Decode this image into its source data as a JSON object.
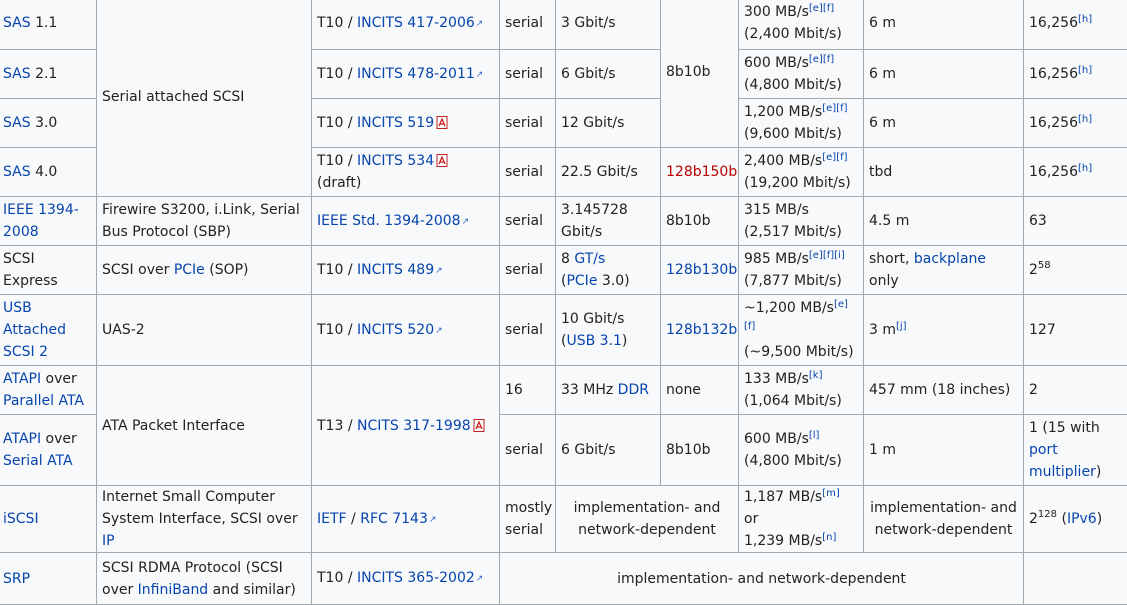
{
  "rows": {
    "sas11": {
      "name": "SAS",
      "ver": "1.1",
      "std_org": "T10 / ",
      "std_doc": "INCITS 417-2006",
      "bus": "serial",
      "clock": "3 Gbit/s",
      "speed1": "300 MB/s",
      "speed2": "(2,400 Mbit/s)",
      "refs": "[e][f]",
      "length": "6 m",
      "devices": "16,256",
      "dev_ref": "[h]"
    },
    "sas21": {
      "name": "SAS",
      "ver": "2.1",
      "std_org": "T10 / ",
      "std_doc": "INCITS 478-2011",
      "bus": "serial",
      "clock": "6 Gbit/s",
      "speed1": "600 MB/s",
      "speed2": "(4,800 Mbit/s)",
      "refs": "[e][f]",
      "length": "6 m",
      "devices": "16,256",
      "dev_ref": "[h]"
    },
    "sas30": {
      "name": "SAS",
      "ver": "3.0",
      "std_org": "T10 / ",
      "std_doc": "INCITS 519",
      "bus": "serial",
      "clock": "12 Gbit/s",
      "speed1": "1,200 MB/s",
      "speed2": "(9,600 Mbit/s)",
      "refs": "[e][f]",
      "length": "6 m",
      "devices": "16,256",
      "dev_ref": "[h]"
    },
    "sas40": {
      "name": "SAS",
      "ver": "4.0",
      "std_org": "T10 / ",
      "std_doc": "INCITS 534",
      "std_suffix": " (draft)",
      "bus": "serial",
      "clock": "22.5 Gbit/s",
      "encoding": "128b150b",
      "speed1": "2,400 MB/s",
      "speed2": "(19,200 Mbit/s)",
      "refs": "[e][f]",
      "length": "tbd",
      "devices": "16,256",
      "dev_ref": "[h]"
    },
    "sas_group": {
      "description": "Serial attached SCSI",
      "encoding": "8b10b"
    },
    "ieee1394": {
      "name": "IEEE 1394-2008",
      "description": "Firewire S3200, i.Link, Serial Bus Protocol (SBP)",
      "std_doc": "IEEE Std. 1394-2008",
      "bus": "serial",
      "clock": "3.145728 Gbit/s",
      "encoding": "8b10b",
      "speed1": "315 MB/s",
      "speed2": "(2,517 Mbit/s)",
      "length": "4.5 m",
      "devices": "63"
    },
    "scsi_express": {
      "name": "SCSI Express",
      "desc_pre": "SCSI over ",
      "desc_link": "PCIe",
      "desc_post": " (SOP)",
      "std_org": "T10 / ",
      "std_doc": "INCITS 489",
      "bus": "serial",
      "clock_val": "8 ",
      "clock_unit": "GT/s",
      "clock_pre": "(",
      "clock_link": "PCIe",
      "clock_post": " 3.0)",
      "encoding": "128b130b",
      "speed1": "985 MB/s",
      "speed2": "(7,877 Mbit/s)",
      "refs": "[e][f][i]",
      "len_pre": "short, ",
      "len_link": "backplane",
      "len_post": " only",
      "dev_base": "2",
      "dev_exp": "58"
    },
    "uas2": {
      "name": "USB Attached SCSI 2",
      "description": "UAS-2",
      "std_org": "T10 / ",
      "std_doc": "INCITS 520",
      "bus": "serial",
      "clock_val": "10 Gbit/s",
      "clock_pre": "(",
      "clock_link": "USB 3.1",
      "clock_post": ")",
      "encoding": "128b132b",
      "speed1": "~1,200 MB/s",
      "speed2": "(~9,500 Mbit/s)",
      "refs": "[e][f]",
      "length": "3 m",
      "len_ref": "[j]",
      "devices": "127"
    },
    "atapi_pata": {
      "name_link": "ATAPI",
      "name_mid": " over ",
      "name_link2": "Parallel ATA",
      "bus": "16",
      "clock_pre": "33 MHz ",
      "clock_link": "DDR",
      "encoding": "none",
      "speed1": "133 MB/s",
      "speed2": "(1,064 Mbit/s)",
      "refs": "[k]",
      "length": "457 mm (18 inches)",
      "devices": "2"
    },
    "atapi_sata": {
      "name_link": "ATAPI",
      "name_mid": " over ",
      "name_link2": "Serial ATA",
      "bus": "serial",
      "clock": "6 Gbit/s",
      "encoding": "8b10b",
      "speed1": "600 MB/s",
      "speed2": "(4,800 Mbit/s)",
      "refs": "[l]",
      "length": "1 m",
      "dev_pre": "1 (15 with ",
      "dev_link": "port multiplier",
      "dev_post": ")"
    },
    "atapi_group": {
      "description": "ATA Packet Interface",
      "std_org": "T13 / ",
      "std_doc": "NCITS 317-1998"
    },
    "iscsi": {
      "name": "iSCSI",
      "desc_pre": "Internet Small Computer System Interface, SCSI over ",
      "desc_link": "IP",
      "std_link1": "IETF",
      "std_mid": " / ",
      "std_doc": "RFC 7143",
      "bus": "mostly serial",
      "clock_enc": "implementation- and network-dependent",
      "speed_a": "1,187 MB/s",
      "ref_a": "[m]",
      "speed_mid": " or ",
      "speed_b": "1,239 MB/s",
      "ref_b": "[n]",
      "length": "implementation- and network-dependent",
      "dev_base": "2",
      "dev_exp": "128",
      "dev_pre": " (",
      "dev_link": "IPv6",
      "dev_post": ")"
    },
    "srp": {
      "name": "SRP",
      "desc_pre": "SCSI RDMA Protocol (SCSI over ",
      "desc_link": "InfiniBand",
      "desc_post": " and similar)",
      "std_org": "T10 / ",
      "std_doc": "INCITS 365-2002",
      "merged": "implementation- and network-dependent",
      "devices": ""
    }
  },
  "colors": {
    "link": "#0645ad",
    "red_link": "#ba0000",
    "cell_bg": "#f8f9fa",
    "border": "#a2a9b1"
  },
  "icons": {
    "external": "external-link-icon",
    "pdf": "pdf-icon"
  }
}
